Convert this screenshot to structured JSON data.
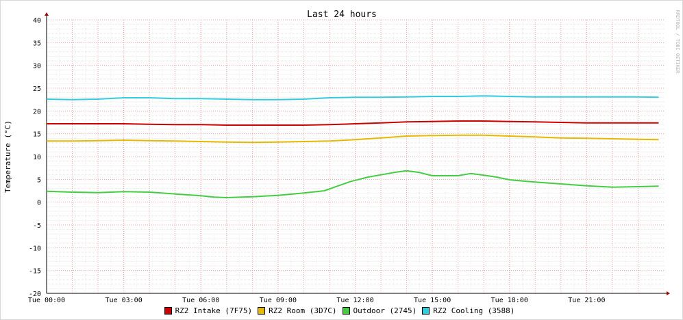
{
  "chart_data": {
    "type": "line",
    "title": "Last 24 hours",
    "ylabel": "Temperature (°C)",
    "watermark": "RRDTOOL / TOBI OETIKER",
    "ylim": [
      -20,
      40
    ],
    "yticks": [
      -20,
      -15,
      -10,
      -5,
      0,
      5,
      10,
      15,
      20,
      25,
      30,
      35,
      40
    ],
    "xlim": [
      0,
      24
    ],
    "xticks": [
      {
        "hour": 0,
        "label": "Tue 00:00"
      },
      {
        "hour": 3,
        "label": "Tue 03:00"
      },
      {
        "hour": 6,
        "label": "Tue 06:00"
      },
      {
        "hour": 9,
        "label": "Tue 09:00"
      },
      {
        "hour": 12,
        "label": "Tue 12:00"
      },
      {
        "hour": 15,
        "label": "Tue 15:00"
      },
      {
        "hour": 18,
        "label": "Tue 18:00"
      },
      {
        "hour": 21,
        "label": "Tue 21:00"
      }
    ],
    "grid": true,
    "legend_position": "bottom",
    "series": [
      {
        "name": "RZ2 Intake (7F75)",
        "color": "#cc0000",
        "points": [
          [
            0,
            17.2
          ],
          [
            1,
            17.2
          ],
          [
            2,
            17.2
          ],
          [
            3,
            17.2
          ],
          [
            4,
            17.1
          ],
          [
            5,
            17.0
          ],
          [
            6,
            17.0
          ],
          [
            7,
            16.9
          ],
          [
            8,
            16.9
          ],
          [
            9,
            16.9
          ],
          [
            10,
            16.9
          ],
          [
            11,
            17.0
          ],
          [
            12,
            17.2
          ],
          [
            13,
            17.4
          ],
          [
            14,
            17.6
          ],
          [
            15,
            17.7
          ],
          [
            16,
            17.8
          ],
          [
            17,
            17.8
          ],
          [
            18,
            17.7
          ],
          [
            19,
            17.6
          ],
          [
            20,
            17.5
          ],
          [
            21,
            17.4
          ],
          [
            22,
            17.4
          ],
          [
            23,
            17.4
          ],
          [
            23.8,
            17.4
          ]
        ]
      },
      {
        "name": "RZ2 Room (3D7C)",
        "color": "#e6b800",
        "points": [
          [
            0,
            13.4
          ],
          [
            1,
            13.4
          ],
          [
            2,
            13.5
          ],
          [
            3,
            13.6
          ],
          [
            4,
            13.5
          ],
          [
            5,
            13.4
          ],
          [
            6,
            13.3
          ],
          [
            7,
            13.2
          ],
          [
            8,
            13.1
          ],
          [
            9,
            13.2
          ],
          [
            10,
            13.3
          ],
          [
            11,
            13.4
          ],
          [
            12,
            13.7
          ],
          [
            13,
            14.1
          ],
          [
            14,
            14.5
          ],
          [
            15,
            14.6
          ],
          [
            16,
            14.7
          ],
          [
            17,
            14.7
          ],
          [
            18,
            14.5
          ],
          [
            19,
            14.3
          ],
          [
            20,
            14.1
          ],
          [
            21,
            14.0
          ],
          [
            22,
            13.9
          ],
          [
            23,
            13.8
          ],
          [
            23.8,
            13.7
          ]
        ]
      },
      {
        "name": "Outdoor (2745)",
        "color": "#44cc44",
        "points": [
          [
            0,
            2.4
          ],
          [
            1,
            2.2
          ],
          [
            2,
            2.1
          ],
          [
            3,
            2.3
          ],
          [
            4,
            2.2
          ],
          [
            5,
            1.8
          ],
          [
            6,
            1.4
          ],
          [
            6.5,
            1.1
          ],
          [
            7,
            1.0
          ],
          [
            8,
            1.2
          ],
          [
            9,
            1.5
          ],
          [
            10,
            2.0
          ],
          [
            10.8,
            2.5
          ],
          [
            11.3,
            3.5
          ],
          [
            11.8,
            4.5
          ],
          [
            12.5,
            5.5
          ],
          [
            13,
            6.0
          ],
          [
            13.5,
            6.5
          ],
          [
            14,
            6.9
          ],
          [
            14.5,
            6.5
          ],
          [
            15,
            5.8
          ],
          [
            16,
            5.8
          ],
          [
            16.5,
            6.3
          ],
          [
            17,
            5.9
          ],
          [
            17.5,
            5.5
          ],
          [
            18,
            4.9
          ],
          [
            19,
            4.4
          ],
          [
            20,
            4.0
          ],
          [
            21,
            3.6
          ],
          [
            22,
            3.3
          ],
          [
            23,
            3.4
          ],
          [
            23.8,
            3.5
          ]
        ]
      },
      {
        "name": "RZ2 Cooling (3588)",
        "color": "#33ccdd",
        "points": [
          [
            0,
            22.6
          ],
          [
            1,
            22.5
          ],
          [
            2,
            22.6
          ],
          [
            3,
            22.9
          ],
          [
            4,
            22.9
          ],
          [
            5,
            22.7
          ],
          [
            6,
            22.7
          ],
          [
            7,
            22.6
          ],
          [
            8,
            22.5
          ],
          [
            9,
            22.5
          ],
          [
            10,
            22.6
          ],
          [
            11,
            22.9
          ],
          [
            12,
            23.0
          ],
          [
            13,
            23.0
          ],
          [
            14,
            23.1
          ],
          [
            15,
            23.2
          ],
          [
            16,
            23.2
          ],
          [
            17,
            23.3
          ],
          [
            18,
            23.2
          ],
          [
            19,
            23.1
          ],
          [
            20,
            23.1
          ],
          [
            21,
            23.1
          ],
          [
            22,
            23.1
          ],
          [
            23,
            23.1
          ],
          [
            23.8,
            23.0
          ]
        ]
      }
    ]
  }
}
